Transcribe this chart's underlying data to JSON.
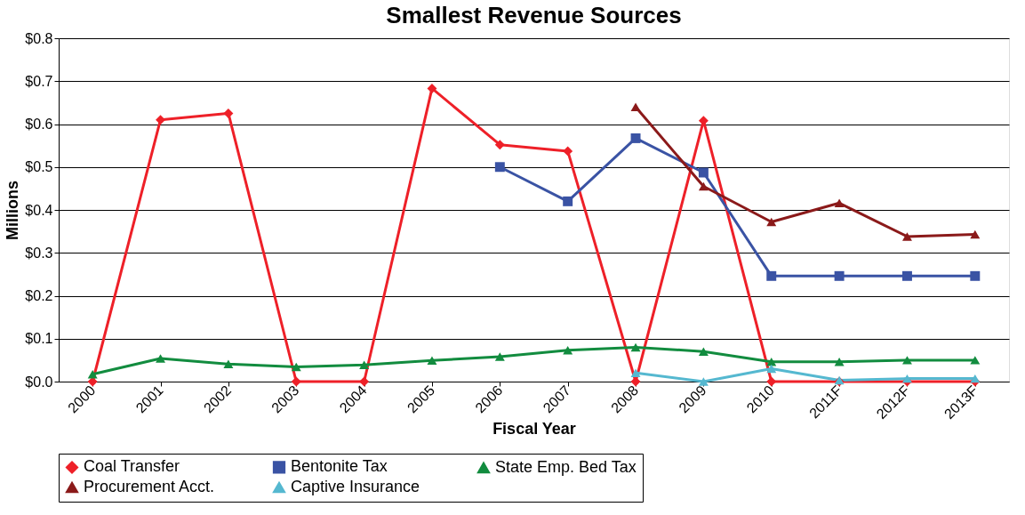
{
  "chart_data": {
    "type": "line",
    "title": "Smallest Revenue Sources",
    "xlabel": "Fiscal Year",
    "ylabel": "Millions",
    "categories": [
      "2000",
      "2001",
      "2002",
      "2003",
      "2004",
      "2005",
      "2006",
      "2007",
      "2008",
      "2009",
      "2010",
      "2011F",
      "2012F",
      "2013F"
    ],
    "series": [
      {
        "name": "Coal Transfer",
        "color": "#ee2028",
        "marker": "diamond",
        "values": [
          0,
          0.61,
          0.625,
          0,
          0,
          0.683,
          0.552,
          0.537,
          0,
          0.608,
          0,
          0,
          0,
          0
        ]
      },
      {
        "name": "Bentonite Tax",
        "color": "#3a53a4",
        "marker": "square",
        "values": [
          null,
          null,
          null,
          null,
          null,
          null,
          0.5,
          0.42,
          0.567,
          0.487,
          0.246,
          0.246,
          0.246,
          0.246
        ]
      },
      {
        "name": "State Emp. Bed Tax",
        "color": "#128c3f",
        "marker": "triangle",
        "values": [
          0.017,
          0.054,
          0.041,
          0.034,
          0.039,
          0.049,
          0.058,
          0.073,
          0.08,
          0.07,
          0.046,
          0.046,
          0.05,
          0.05
        ]
      },
      {
        "name": "Procurement Acct.",
        "color": "#8b1a1a",
        "marker": "triangle",
        "values": [
          null,
          null,
          null,
          null,
          null,
          null,
          null,
          null,
          0.64,
          0.455,
          0.372,
          0.416,
          0.338,
          0.343
        ]
      },
      {
        "name": "Captive Insurance",
        "color": "#55b8d0",
        "marker": "triangle",
        "values": [
          null,
          null,
          null,
          null,
          null,
          null,
          null,
          null,
          0.02,
          0,
          0.03,
          0.003,
          0.007,
          0.007
        ]
      }
    ],
    "ylim": [
      0,
      0.8
    ],
    "yticks": [
      {
        "value": 0,
        "label": "$0.0"
      },
      {
        "value": 0.1,
        "label": "$0.1"
      },
      {
        "value": 0.2,
        "label": "$0.2"
      },
      {
        "value": 0.3,
        "label": "$0.3"
      },
      {
        "value": 0.4,
        "label": "$0.4"
      },
      {
        "value": 0.5,
        "label": "$0.5"
      },
      {
        "value": 0.6,
        "label": "$0.6"
      },
      {
        "value": 0.7,
        "label": "$0.7"
      },
      {
        "value": 0.8,
        "label": "$0.8"
      }
    ],
    "grid": "y",
    "legend": "bottom",
    "line_style": "solid"
  }
}
